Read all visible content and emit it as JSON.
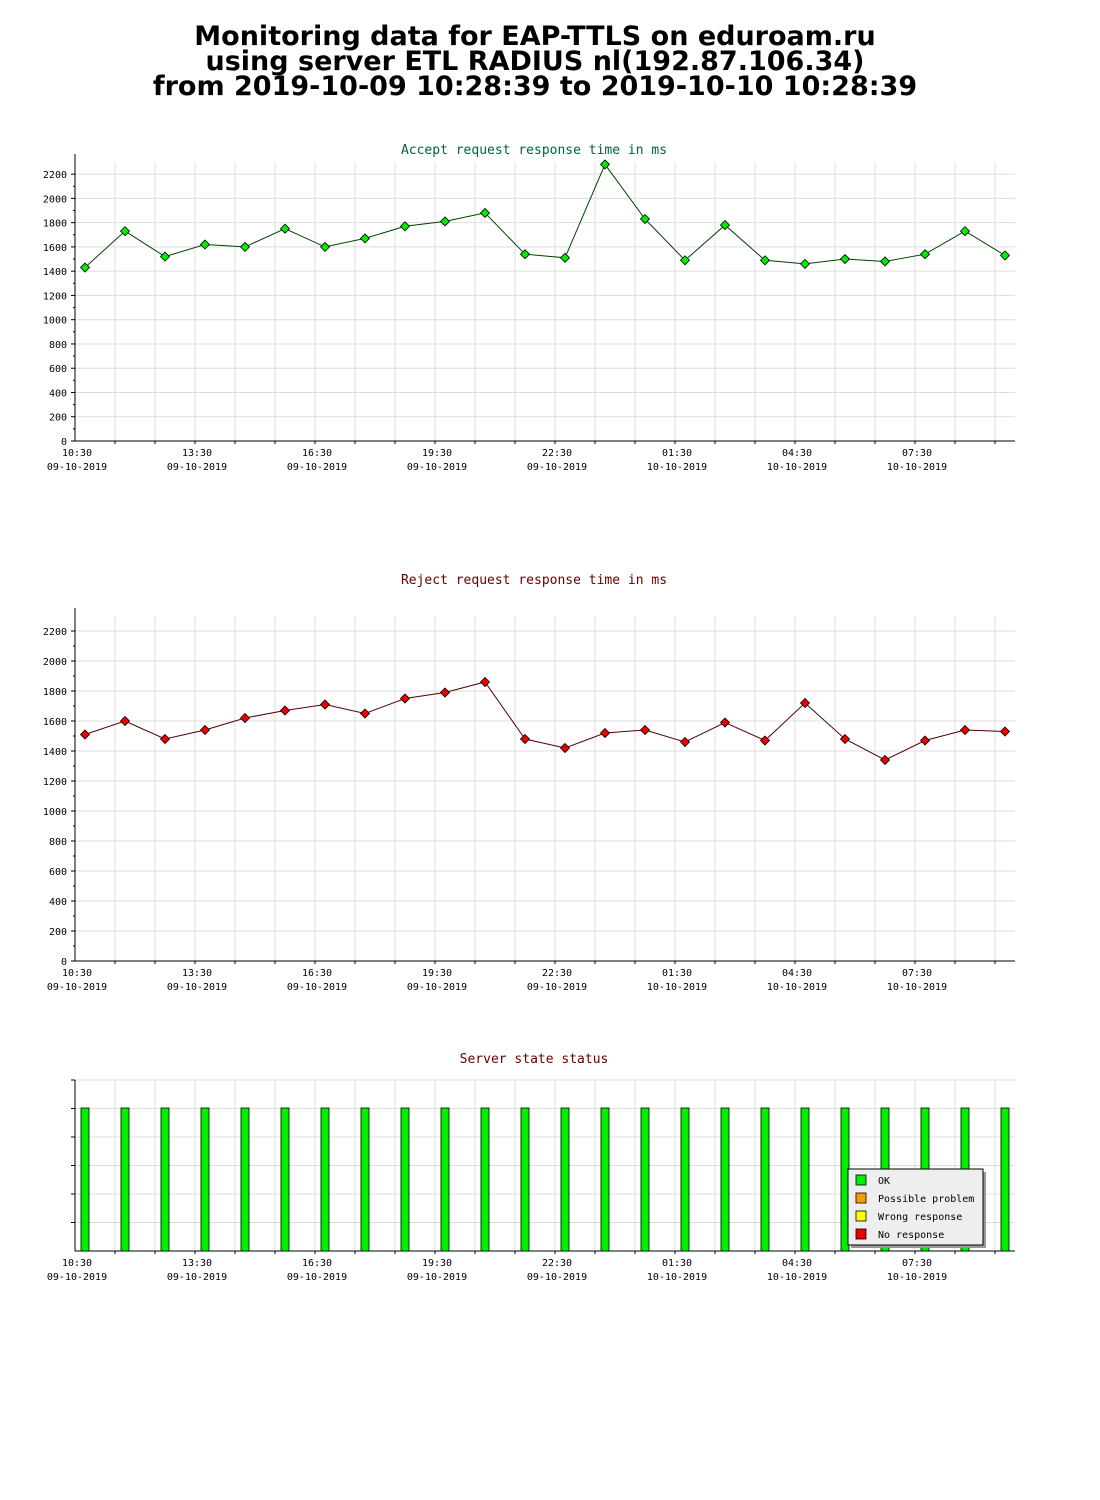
{
  "page": {
    "title_lines": [
      "Monitoring data for EAP-TTLS on eduroam.ru",
      "using server ETL RADIUS nl(192.87.106.34)",
      "from 2019-10-09 10:28:39 to 2019-10-10 10:28:39"
    ]
  },
  "colors": {
    "accept_line": "#004400",
    "accept_marker": "#00ee00",
    "reject_line": "#550000",
    "reject_marker": "#ee0000",
    "ok": "#00ee00",
    "possible_problem": "#ff9900",
    "wrong_response": "#ffff00",
    "no_response": "#ee0000",
    "grid": "#dddddd"
  },
  "time_ticks": [
    {
      "time": "10:30",
      "date": "09-10-2019"
    },
    {
      "time": "13:30",
      "date": "09-10-2019"
    },
    {
      "time": "16:30",
      "date": "09-10-2019"
    },
    {
      "time": "19:30",
      "date": "09-10-2019"
    },
    {
      "time": "22:30",
      "date": "09-10-2019"
    },
    {
      "time": "01:30",
      "date": "10-10-2019"
    },
    {
      "time": "04:30",
      "date": "10-10-2019"
    },
    {
      "time": "07:30",
      "date": "10-10-2019"
    }
  ],
  "chart_data": [
    {
      "type": "line",
      "title": "Accept request response time in ms",
      "ylim": [
        0,
        2300
      ],
      "yticks": [
        0,
        200,
        400,
        600,
        800,
        1000,
        1200,
        1400,
        1600,
        1800,
        2000,
        2200
      ],
      "grid": true,
      "series": [
        {
          "values": [
            1430,
            1730,
            1520,
            1620,
            1600,
            1750,
            1600,
            1670,
            1770,
            1810,
            1880,
            1540,
            1510,
            2280,
            1830,
            1490,
            1780,
            1490,
            1460,
            1500,
            1480,
            1540,
            1730,
            1530
          ]
        }
      ]
    },
    {
      "type": "line",
      "title": "Reject request response time in ms",
      "ylim": [
        0,
        2300
      ],
      "yticks": [
        0,
        200,
        400,
        600,
        800,
        1000,
        1200,
        1400,
        1600,
        1800,
        2000,
        2200
      ],
      "grid": true,
      "series": [
        {
          "values": [
            1510,
            1600,
            1480,
            1540,
            1620,
            1670,
            1710,
            1650,
            1750,
            1790,
            1860,
            1480,
            1420,
            1520,
            1540,
            1460,
            1590,
            1470,
            1720,
            1480,
            1340,
            1470,
            1540,
            1530
          ]
        }
      ]
    },
    {
      "type": "bar",
      "title": "Server state status",
      "legend_position": "bottom-right",
      "legend": [
        "OK",
        "Possible problem",
        "Wrong response",
        "No response"
      ],
      "states": [
        "OK",
        "OK",
        "OK",
        "OK",
        "OK",
        "OK",
        "OK",
        "OK",
        "OK",
        "OK",
        "OK",
        "OK",
        "OK",
        "OK",
        "OK",
        "OK",
        "OK",
        "OK",
        "OK",
        "OK",
        "OK",
        "OK",
        "OK",
        "OK"
      ]
    }
  ]
}
